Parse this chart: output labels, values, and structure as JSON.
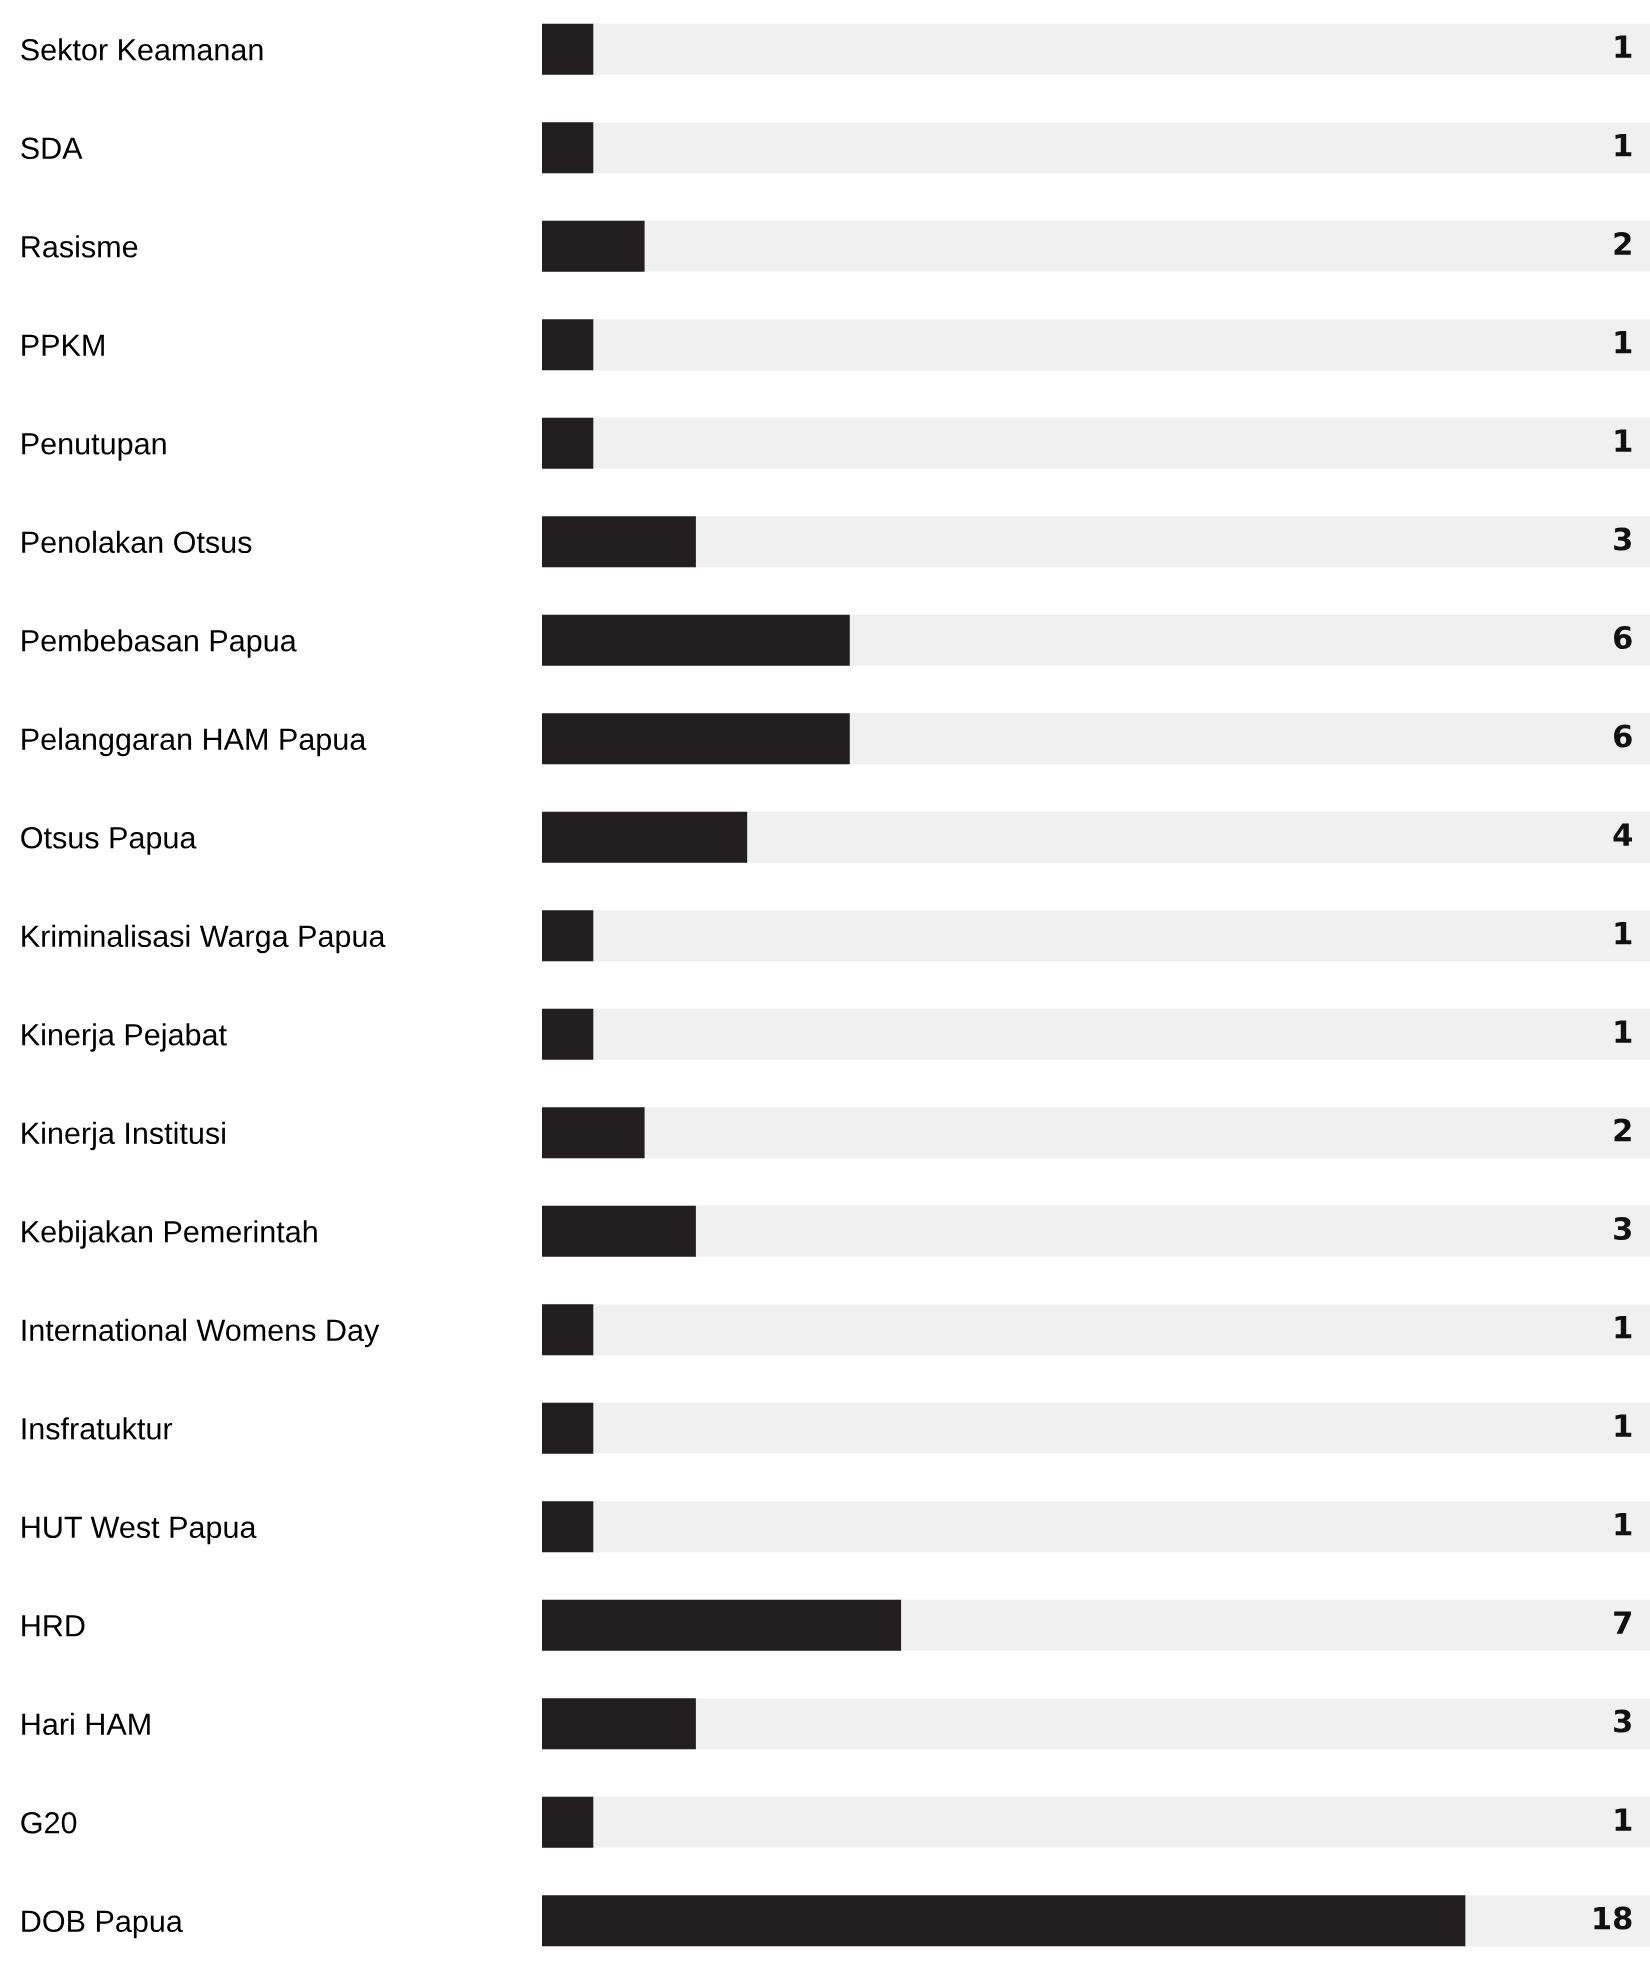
{
  "chart_data": {
    "type": "bar",
    "orientation": "horizontal",
    "categories": [
      "Sektor Keamanan",
      "SDA",
      "Rasisme",
      "PPKM",
      "Penutupan",
      "Penolakan Otsus",
      "Pembebasan Papua",
      "Pelanggaran HAM Papua",
      "Otsus Papua",
      "Kriminalisasi Warga Papua",
      "Kinerja Pejabat",
      "Kinerja Institusi",
      "Kebijakan Pemerintah",
      "International Womens Day",
      "Insfratuktur",
      "HUT West Papua",
      "HRD",
      "Hari HAM",
      "G20",
      "DOB Papua"
    ],
    "values": [
      1,
      1,
      2,
      1,
      1,
      3,
      6,
      6,
      4,
      1,
      1,
      2,
      3,
      1,
      1,
      1,
      7,
      3,
      1,
      18
    ],
    "color": "#231f20",
    "data_labels": true,
    "grid": false,
    "legend": false
  }
}
